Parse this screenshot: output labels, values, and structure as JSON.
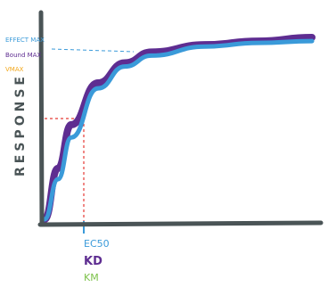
{
  "chart_data": {
    "type": "line",
    "title": "",
    "xlabel": "",
    "ylabel": "RESPONSE",
    "axis_color": "#4a5456",
    "x_markers": [
      {
        "label": "EC50",
        "color": "#3a9ad9"
      },
      {
        "label": "KD",
        "color": "#5e2d91"
      },
      {
        "label": "KM",
        "color": "#7dc24b"
      }
    ],
    "y_markers": [
      {
        "label": "EFFECT MAX",
        "color": "#3a9ad9"
      },
      {
        "label": "Bound MAX",
        "color": "#5e2d91"
      },
      {
        "label": "VMAX",
        "color": "#f2a71b"
      }
    ],
    "series": [
      {
        "color": "#5e2d91",
        "x": [
          0.0,
          0.05,
          0.1,
          0.2,
          0.3,
          0.4,
          0.6,
          0.8,
          1.0
        ],
        "y": [
          0.0,
          0.28,
          0.52,
          0.75,
          0.86,
          0.92,
          0.96,
          0.98,
          1.0
        ]
      },
      {
        "color": "#3a9ad9",
        "x": [
          0.0,
          0.05,
          0.1,
          0.2,
          0.3,
          0.4,
          0.6,
          0.8,
          1.0
        ],
        "y": [
          0.0,
          0.22,
          0.45,
          0.72,
          0.84,
          0.9,
          0.95,
          0.97,
          0.98
        ]
      }
    ]
  }
}
